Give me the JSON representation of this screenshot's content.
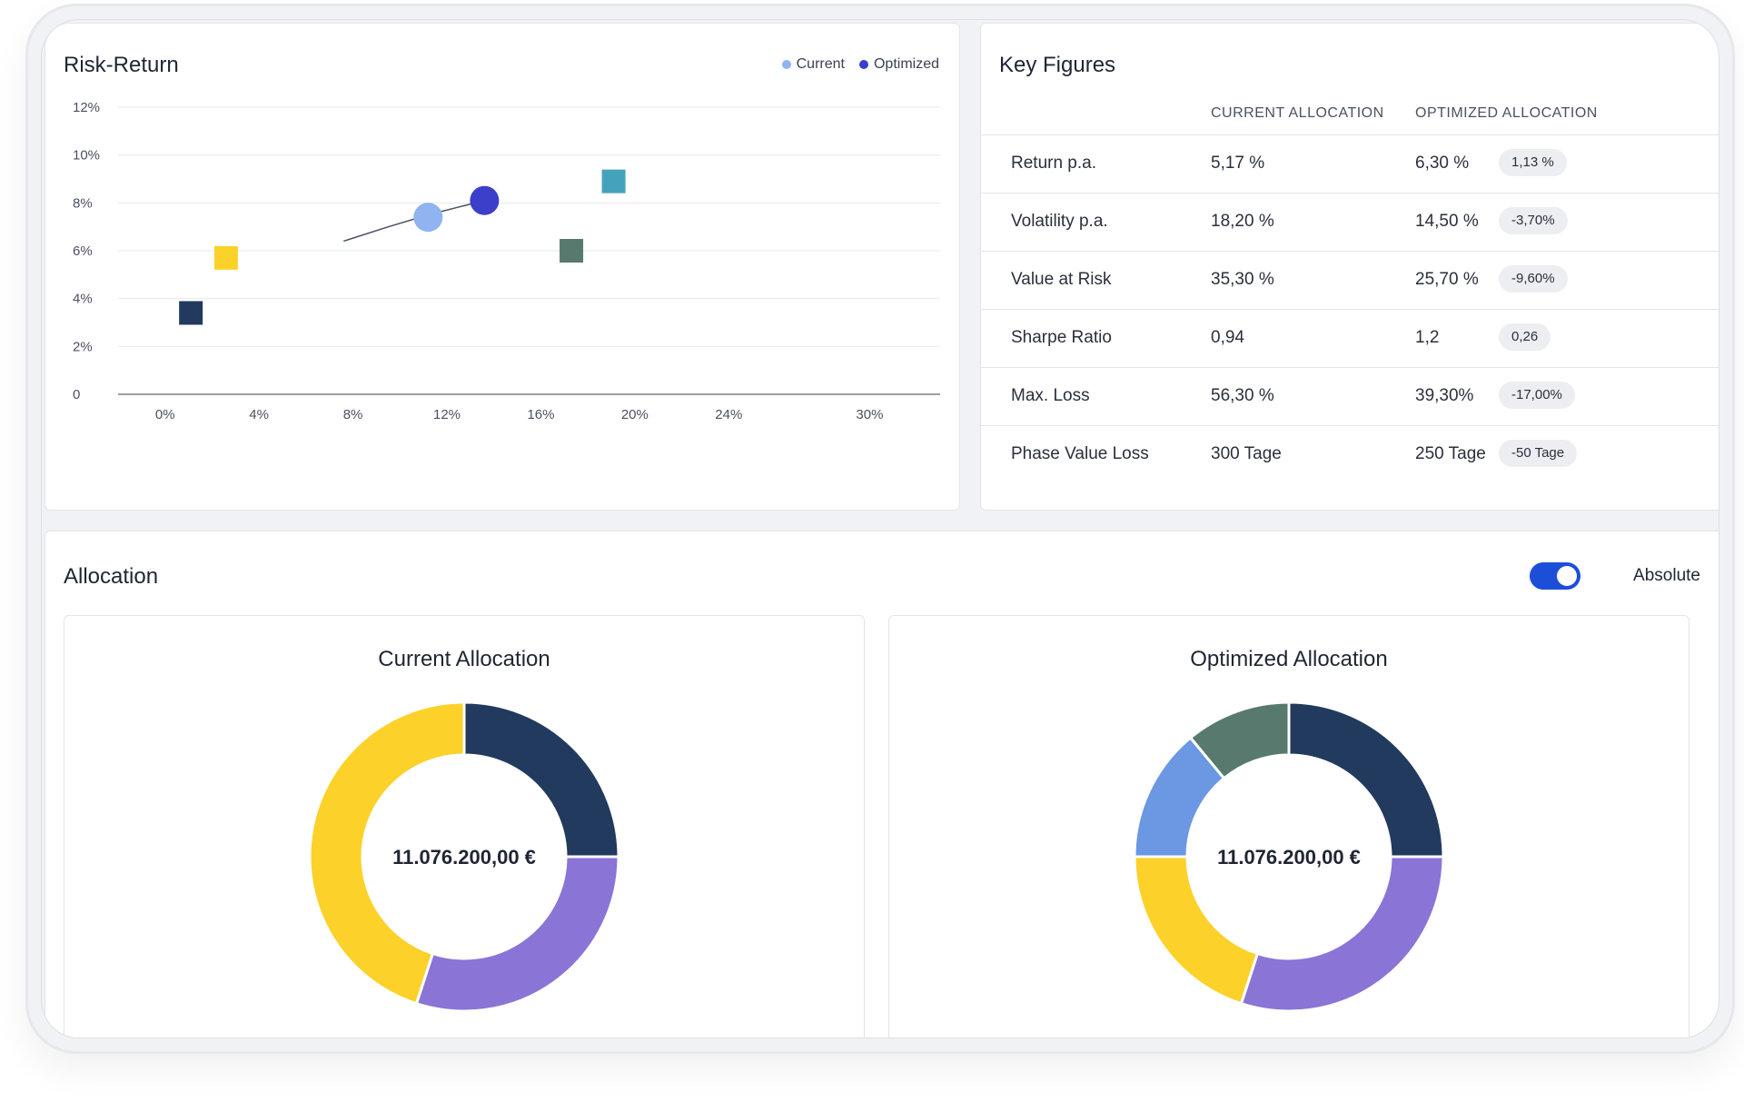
{
  "risk_return": {
    "title": "Risk-Return",
    "legend": [
      {
        "label": "Current",
        "color": "#8fb4ef"
      },
      {
        "label": "Optimized",
        "color": "#3b3fc9"
      }
    ]
  },
  "chart_data": {
    "type": "scatter",
    "xlim": [
      -2,
      33
    ],
    "ylim": [
      0,
      12
    ],
    "x_ticks": [
      {
        "value": 0,
        "label": "0%"
      },
      {
        "value": 4,
        "label": "4%"
      },
      {
        "value": 8,
        "label": "8%"
      },
      {
        "value": 12,
        "label": "12%"
      },
      {
        "value": 16,
        "label": "16%"
      },
      {
        "value": 20,
        "label": "20%"
      },
      {
        "value": 24,
        "label": "24%"
      },
      {
        "value": 30,
        "label": "30%"
      }
    ],
    "y_ticks": [
      {
        "value": 0,
        "label": "0"
      },
      {
        "value": 2,
        "label": "2%"
      },
      {
        "value": 4,
        "label": "4%"
      },
      {
        "value": 6,
        "label": "6%"
      },
      {
        "value": 8,
        "label": "8%"
      },
      {
        "value": 10,
        "label": "10%"
      },
      {
        "value": 12,
        "label": "12%"
      }
    ],
    "grid": "horizontal",
    "frontier": [
      [
        7.6,
        6.4
      ],
      [
        9.5,
        7.0
      ],
      [
        11.2,
        7.5
      ],
      [
        12.8,
        7.9
      ],
      [
        13.6,
        8.1
      ]
    ],
    "points": [
      {
        "name": "Current",
        "shape": "circle",
        "x": 11.2,
        "y": 7.4,
        "color": "#8fb4ef"
      },
      {
        "name": "Optimized",
        "shape": "circle",
        "x": 13.6,
        "y": 8.1,
        "color": "#3b3fc9"
      }
    ],
    "assets": [
      {
        "shape": "square",
        "x": 1.1,
        "y": 3.4,
        "color": "#223a5e"
      },
      {
        "shape": "square",
        "x": 2.6,
        "y": 5.7,
        "color": "#fcd12a"
      },
      {
        "shape": "square",
        "x": 17.3,
        "y": 6.0,
        "color": "#587a6e"
      },
      {
        "shape": "square",
        "x": 19.1,
        "y": 8.9,
        "color": "#45a2bd"
      }
    ]
  },
  "key_figures": {
    "title": "Key Figures",
    "col_current": "CURRENT ALLOCATION",
    "col_optimized": "OPTIMIZED ALLOCATION",
    "rows": [
      {
        "label": "Return p.a.",
        "current": "5,17 %",
        "optimized": "6,30 %",
        "delta": "1,13 %"
      },
      {
        "label": "Volatility p.a.",
        "current": "18,20 %",
        "optimized": "14,50 %",
        "delta": "-3,70%"
      },
      {
        "label": "Value at Risk",
        "current": "35,30 %",
        "optimized": "25,70 %",
        "delta": "-9,60%"
      },
      {
        "label": "Sharpe Ratio",
        "current": "0,94",
        "optimized": "1,2",
        "delta": "0,26"
      },
      {
        "label": "Max. Loss",
        "current": "56,30 %",
        "optimized": "39,30%",
        "delta": "-17,00%"
      },
      {
        "label": "Phase Value Loss",
        "current": "300 Tage",
        "optimized": "250 Tage",
        "delta": "-50 Tage"
      }
    ]
  },
  "allocation": {
    "title": "Allocation",
    "toggle_label": "Absolute",
    "toggle_on": true,
    "current": {
      "title": "Current Allocation",
      "total": "11.076.200,00 €",
      "slices": [
        {
          "color": "#223a5e",
          "value": 25
        },
        {
          "color": "#8a74d6",
          "value": 30
        },
        {
          "color": "#fcd12a",
          "value": 45
        }
      ]
    },
    "optimized": {
      "title": "Optimized Allocation",
      "total": "11.076.200,00 €",
      "slices": [
        {
          "color": "#223a5e",
          "value": 25
        },
        {
          "color": "#8a74d6",
          "value": 30
        },
        {
          "color": "#fcd12a",
          "value": 20
        },
        {
          "color": "#6b97e3",
          "value": 14
        },
        {
          "color": "#587a6e",
          "value": 11
        }
      ]
    }
  }
}
